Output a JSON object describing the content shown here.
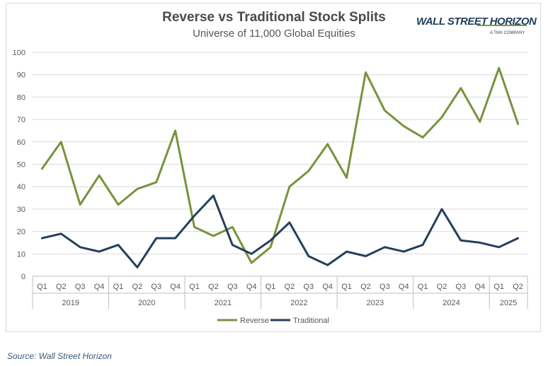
{
  "header": {
    "title": "Reverse vs Traditional Stock Splits",
    "subtitle": "Universe of 11,000 Global Equities"
  },
  "logo": {
    "main": "WALL STREET HORIZON",
    "sub": "A TMX COMPANY"
  },
  "footer": {
    "source": "Source: Wall Street Horizon"
  },
  "colors": {
    "reverse": "#77933c",
    "traditional": "#243f5a",
    "grid": "#d9d9d9",
    "axis_text": "#595959"
  },
  "chart_data": {
    "type": "line",
    "title": "Reverse vs Traditional Stock Splits",
    "subtitle": "Universe of 11,000 Global Equities",
    "ylim": [
      0,
      100
    ],
    "yticks": [
      0,
      10,
      20,
      30,
      40,
      50,
      60,
      70,
      80,
      90,
      100
    ],
    "grid": true,
    "legend_position": "bottom",
    "categories": [
      "Q1",
      "Q2",
      "Q3",
      "Q4",
      "Q1",
      "Q2",
      "Q3",
      "Q4",
      "Q1",
      "Q2",
      "Q3",
      "Q4",
      "Q1",
      "Q2",
      "Q3",
      "Q4",
      "Q1",
      "Q2",
      "Q3",
      "Q4",
      "Q1",
      "Q2",
      "Q3",
      "Q4",
      "Q1",
      "Q2"
    ],
    "groups": [
      {
        "label": "2019",
        "count": 4
      },
      {
        "label": "2020",
        "count": 4
      },
      {
        "label": "2021",
        "count": 4
      },
      {
        "label": "2022",
        "count": 4
      },
      {
        "label": "2023",
        "count": 4
      },
      {
        "label": "2024",
        "count": 4
      },
      {
        "label": "2025",
        "count": 2
      }
    ],
    "series": [
      {
        "name": "Reverse",
        "values": [
          48,
          60,
          32,
          45,
          32,
          39,
          42,
          65,
          22,
          18,
          22,
          6,
          13,
          40,
          47,
          59,
          44,
          91,
          74,
          67,
          62,
          71,
          84,
          69,
          93,
          68
        ]
      },
      {
        "name": "Traditional",
        "values": [
          17,
          19,
          13,
          11,
          14,
          4,
          17,
          17,
          27,
          36,
          14,
          10,
          16,
          24,
          9,
          5,
          11,
          9,
          13,
          11,
          14,
          30,
          16,
          15,
          13,
          17
        ]
      }
    ]
  }
}
